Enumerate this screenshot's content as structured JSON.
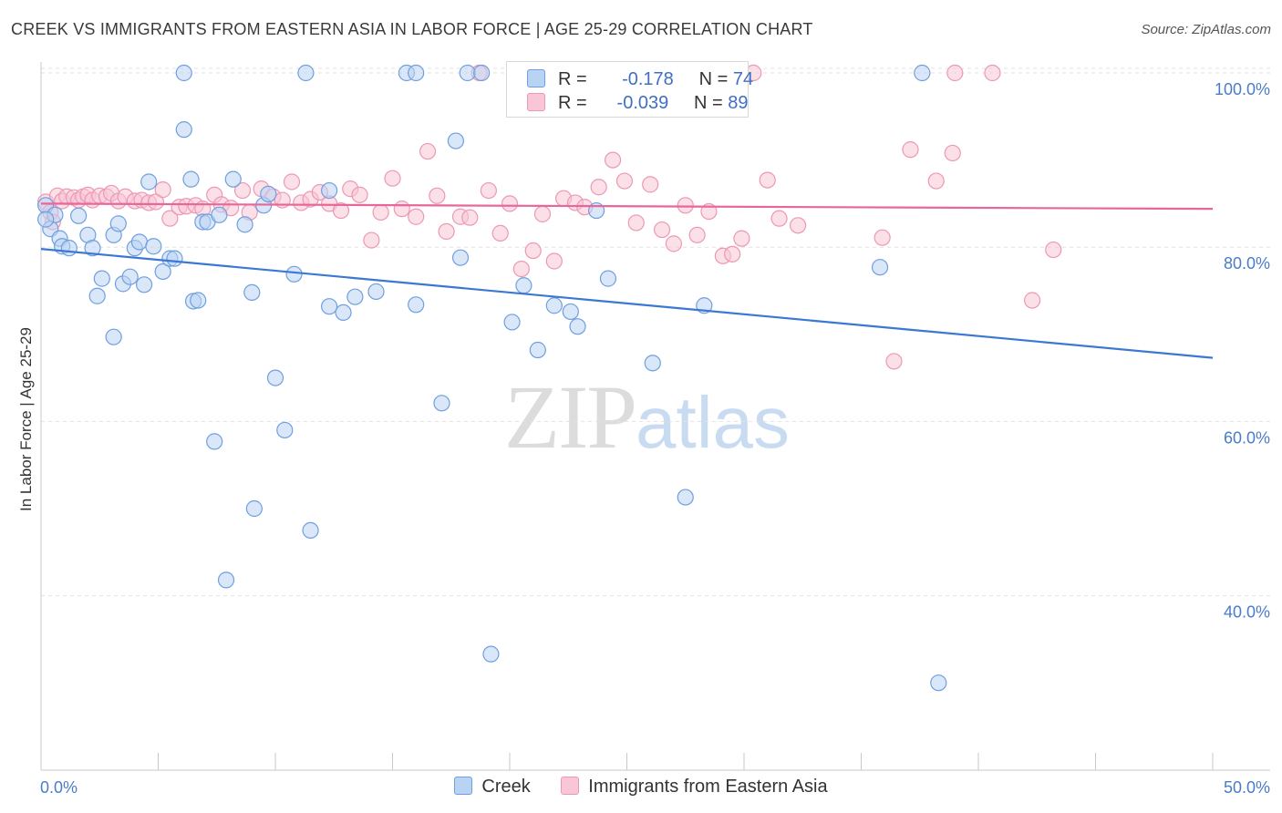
{
  "title": "CREEK VS IMMIGRANTS FROM EASTERN ASIA IN LABOR FORCE | AGE 25-29 CORRELATION CHART",
  "source": "Source: ZipAtlas.com",
  "watermark": {
    "zip": "ZIP",
    "atlas": "atlas"
  },
  "legend_top": [
    {
      "r_label": "R =",
      "r_value": "-0.178",
      "n_label": "N =",
      "n_value": "74"
    },
    {
      "r_label": "R =",
      "r_value": "-0.039",
      "n_label": "N =",
      "n_value": "89"
    }
  ],
  "legend_bottom": [
    {
      "label": "Creek"
    },
    {
      "label": "Immigrants from Eastern Asia"
    }
  ],
  "colors": {
    "creek_fill": "#b9d3f3",
    "creek_stroke": "#6f9fe0",
    "creek_line": "#3b78d4",
    "imm_fill": "#f8c6d6",
    "imm_stroke": "#ec98b4",
    "imm_line": "#e8679a",
    "tick_text": "#4a7cc9",
    "grid": "#e2e2e2"
  },
  "chart_data": {
    "type": "scatter",
    "title": "CREEK VS IMMIGRANTS FROM EASTERN ASIA IN LABOR FORCE | AGE 25-29 CORRELATION CHART",
    "xlabel": "",
    "ylabel": "In Labor Force | Age 25-29",
    "xlim": [
      0,
      50
    ],
    "ylim": [
      20,
      102
    ],
    "x_tick_labels": [
      {
        "value": 0,
        "label": "0.0%"
      },
      {
        "value": 50,
        "label": "50.0%"
      }
    ],
    "y_tick_labels": [
      {
        "value": 100,
        "label": "100.0%"
      },
      {
        "value": 80,
        "label": "80.0%"
      },
      {
        "value": 60,
        "label": "60.0%"
      },
      {
        "value": 40,
        "label": "40.0%"
      }
    ],
    "grid": "horizontal dashed",
    "series": [
      {
        "name": "Creek",
        "trend": {
          "x": [
            0,
            50
          ],
          "y": [
            79.8,
            67.3
          ]
        },
        "points": [
          [
            0.2,
            84.8
          ],
          [
            0.4,
            82.1
          ],
          [
            0.6,
            83.7
          ],
          [
            0.8,
            81.0
          ],
          [
            0.9,
            80.1
          ],
          [
            1.2,
            79.9
          ],
          [
            1.6,
            83.6
          ],
          [
            2.0,
            81.4
          ],
          [
            2.2,
            79.9
          ],
          [
            2.4,
            74.4
          ],
          [
            2.6,
            76.4
          ],
          [
            3.1,
            81.4
          ],
          [
            3.1,
            69.7
          ],
          [
            3.3,
            82.7
          ],
          [
            3.5,
            75.8
          ],
          [
            3.8,
            76.6
          ],
          [
            4.0,
            79.9
          ],
          [
            4.2,
            80.6
          ],
          [
            4.4,
            75.7
          ],
          [
            4.6,
            87.5
          ],
          [
            4.8,
            80.1
          ],
          [
            5.2,
            77.2
          ],
          [
            5.5,
            78.7
          ],
          [
            5.7,
            78.7
          ],
          [
            6.1,
            100.0
          ],
          [
            6.1,
            93.5
          ],
          [
            6.4,
            87.8
          ],
          [
            6.5,
            73.8
          ],
          [
            6.7,
            73.9
          ],
          [
            6.9,
            82.9
          ],
          [
            7.1,
            82.9
          ],
          [
            7.4,
            57.7
          ],
          [
            7.6,
            83.7
          ],
          [
            7.9,
            41.8
          ],
          [
            8.2,
            87.8
          ],
          [
            8.7,
            82.6
          ],
          [
            9.0,
            74.8
          ],
          [
            9.1,
            50.0
          ],
          [
            9.5,
            84.8
          ],
          [
            9.7,
            86.1
          ],
          [
            10.0,
            65.0
          ],
          [
            10.4,
            59.0
          ],
          [
            10.8,
            76.9
          ],
          [
            11.3,
            100.0
          ],
          [
            11.5,
            47.5
          ],
          [
            12.3,
            86.5
          ],
          [
            12.3,
            73.2
          ],
          [
            12.9,
            72.5
          ],
          [
            13.4,
            74.3
          ],
          [
            14.3,
            74.9
          ],
          [
            15.6,
            100.0
          ],
          [
            16.0,
            100.0
          ],
          [
            16.0,
            73.4
          ],
          [
            17.1,
            62.1
          ],
          [
            17.7,
            92.2
          ],
          [
            17.9,
            78.8
          ],
          [
            18.2,
            100.0
          ],
          [
            18.8,
            100.0
          ],
          [
            19.2,
            33.3
          ],
          [
            20.1,
            71.4
          ],
          [
            20.6,
            75.6
          ],
          [
            21.2,
            68.2
          ],
          [
            21.9,
            73.3
          ],
          [
            22.6,
            72.6
          ],
          [
            22.9,
            70.9
          ],
          [
            23.7,
            84.2
          ],
          [
            24.2,
            76.4
          ],
          [
            26.1,
            66.7
          ],
          [
            27.5,
            51.3
          ],
          [
            28.3,
            73.3
          ],
          [
            35.8,
            77.7
          ],
          [
            37.6,
            100.0
          ],
          [
            38.3,
            30.0
          ],
          [
            0.2,
            83.2
          ]
        ]
      },
      {
        "name": "Immigrants from Eastern Asia",
        "trend": {
          "x": [
            0,
            50
          ],
          "y": [
            85.0,
            84.4
          ]
        },
        "points": [
          [
            0.2,
            85.2
          ],
          [
            0.4,
            84.0
          ],
          [
            0.5,
            82.9
          ],
          [
            0.7,
            85.9
          ],
          [
            0.9,
            85.3
          ],
          [
            1.1,
            85.8
          ],
          [
            1.4,
            85.7
          ],
          [
            1.6,
            85.4
          ],
          [
            1.8,
            85.8
          ],
          [
            2.0,
            86.0
          ],
          [
            2.2,
            85.4
          ],
          [
            2.5,
            85.9
          ],
          [
            2.8,
            85.8
          ],
          [
            3.0,
            86.2
          ],
          [
            3.3,
            85.3
          ],
          [
            3.6,
            85.8
          ],
          [
            4.0,
            85.3
          ],
          [
            4.3,
            85.4
          ],
          [
            4.6,
            85.1
          ],
          [
            4.9,
            85.2
          ],
          [
            5.2,
            86.6
          ],
          [
            5.5,
            83.3
          ],
          [
            5.9,
            84.6
          ],
          [
            6.2,
            84.7
          ],
          [
            6.6,
            84.8
          ],
          [
            6.9,
            84.4
          ],
          [
            7.4,
            86.0
          ],
          [
            7.7,
            84.9
          ],
          [
            8.1,
            84.5
          ],
          [
            8.6,
            86.5
          ],
          [
            8.9,
            84.0
          ],
          [
            9.4,
            86.7
          ],
          [
            9.9,
            85.8
          ],
          [
            10.3,
            85.4
          ],
          [
            10.7,
            87.5
          ],
          [
            11.1,
            85.1
          ],
          [
            11.5,
            85.5
          ],
          [
            11.9,
            86.3
          ],
          [
            12.3,
            85.0
          ],
          [
            12.8,
            84.2
          ],
          [
            13.2,
            86.7
          ],
          [
            13.6,
            86.0
          ],
          [
            14.1,
            80.8
          ],
          [
            14.5,
            84.0
          ],
          [
            15.0,
            87.9
          ],
          [
            15.4,
            84.4
          ],
          [
            16.0,
            83.5
          ],
          [
            16.5,
            91.0
          ],
          [
            16.9,
            85.9
          ],
          [
            17.3,
            81.8
          ],
          [
            17.9,
            83.5
          ],
          [
            18.3,
            83.4
          ],
          [
            18.7,
            100.0
          ],
          [
            19.1,
            86.5
          ],
          [
            19.6,
            81.6
          ],
          [
            20.0,
            85.0
          ],
          [
            20.5,
            77.5
          ],
          [
            21.0,
            79.6
          ],
          [
            21.4,
            83.8
          ],
          [
            21.9,
            78.4
          ],
          [
            22.3,
            85.6
          ],
          [
            22.8,
            85.1
          ],
          [
            23.2,
            84.6
          ],
          [
            23.8,
            86.9
          ],
          [
            24.4,
            90.0
          ],
          [
            24.9,
            87.6
          ],
          [
            25.4,
            82.8
          ],
          [
            26.0,
            87.2
          ],
          [
            26.5,
            82.0
          ],
          [
            27.0,
            80.4
          ],
          [
            27.5,
            84.8
          ],
          [
            28.0,
            81.4
          ],
          [
            28.5,
            84.1
          ],
          [
            29.1,
            79.0
          ],
          [
            29.5,
            79.2
          ],
          [
            29.9,
            81.0
          ],
          [
            30.4,
            100.0
          ],
          [
            31.0,
            87.7
          ],
          [
            31.5,
            83.3
          ],
          [
            32.3,
            82.5
          ],
          [
            35.9,
            81.1
          ],
          [
            36.4,
            66.9
          ],
          [
            37.1,
            91.2
          ],
          [
            38.2,
            87.6
          ],
          [
            38.9,
            90.8
          ],
          [
            39.0,
            100.0
          ],
          [
            40.6,
            100.0
          ],
          [
            42.3,
            73.9
          ],
          [
            43.2,
            79.7
          ]
        ]
      }
    ]
  }
}
